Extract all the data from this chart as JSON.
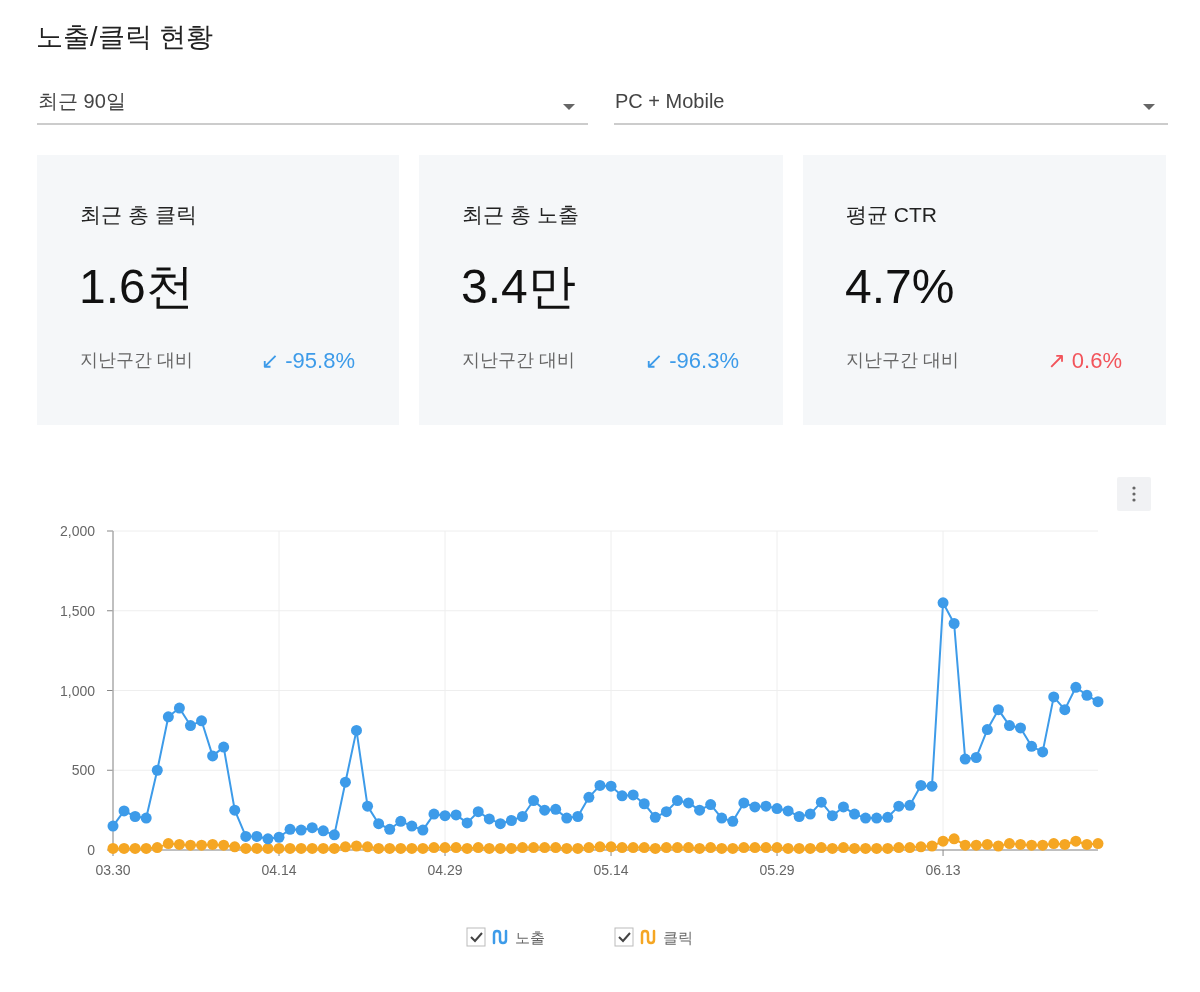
{
  "chart_data": [
    {
      "type": "other",
      "title": "최근 총 클릭",
      "annotations": [
        "1.6천",
        "지난구간 대비",
        "↙ -95.8%"
      ],
      "color": "#3d9be9"
    },
    {
      "type": "other",
      "title": "최근 총 노출",
      "annotations": [
        "3.4만",
        "지난구간 대비",
        "↙ -96.3%"
      ],
      "color": "#3d9be9"
    },
    {
      "type": "other",
      "title": "평균 CTR",
      "annotations": [
        "4.7%",
        "지난구간 대비",
        "↗ 0.6%"
      ],
      "color": "#f2545b"
    },
    {
      "type": "line",
      "title": "노출/클릭 현황",
      "annotations": [
        "최근 90일",
        "PC + Mobile"
      ],
      "x": [
        "--03-30",
        "--03-31",
        "--04-01",
        "--04-02",
        "--04-03",
        "--04-04",
        "--04-05",
        "--04-06",
        "--04-07",
        "--04-08",
        "--04-09",
        "--04-10",
        "--04-11",
        "--04-12",
        "--04-13",
        "--04-14",
        "--04-15",
        "--04-16",
        "--04-17",
        "--04-18",
        "--04-19",
        "--04-20",
        "--04-21",
        "--04-22",
        "--04-23",
        "--04-24",
        "--04-25",
        "--04-26",
        "--04-27",
        "--04-28",
        "--04-29",
        "--04-30",
        "--05-01",
        "--05-02",
        "--05-03",
        "--05-04",
        "--05-05",
        "--05-06",
        "--05-07",
        "--05-08",
        "--05-09",
        "--05-10",
        "--05-11",
        "--05-12",
        "--05-13",
        "--05-14",
        "--05-15",
        "--05-16",
        "--05-17",
        "--05-18",
        "--05-19",
        "--05-20",
        "--05-21",
        "--05-22",
        "--05-23",
        "--05-24",
        "--05-25",
        "--05-26",
        "--05-27",
        "--05-28",
        "--05-29",
        "--05-30",
        "--05-31",
        "--06-01",
        "--06-02",
        "--06-03",
        "--06-04",
        "--06-05",
        "--06-06",
        "--06-07",
        "--06-08",
        "--06-09",
        "--06-10",
        "--06-11",
        "--06-12",
        "--06-13",
        "--06-14",
        "--06-15",
        "--06-16",
        "--06-17",
        "--06-18",
        "--06-19",
        "--06-20",
        "--06-21",
        "--06-22",
        "--06-23",
        "--06-24",
        "--06-25",
        "--06-26",
        "--06-27"
      ],
      "series": [
        {
          "name": "노출",
          "color": "#3d9be9",
          "values": [
            150,
            245,
            210,
            200,
            500,
            835,
            890,
            780,
            810,
            590,
            645,
            250,
            85,
            85,
            70,
            80,
            130,
            125,
            140,
            120,
            95,
            425,
            750,
            275,
            165,
            130,
            180,
            150,
            125,
            225,
            215,
            220,
            170,
            240,
            195,
            165,
            185,
            210,
            310,
            250,
            255,
            200,
            210,
            330,
            405,
            400,
            340,
            345,
            290,
            205,
            240,
            310,
            295,
            250,
            285,
            200,
            180,
            295,
            270,
            275,
            260,
            245,
            210,
            225,
            300,
            215,
            270,
            225,
            200,
            200,
            205,
            275,
            280,
            405,
            400,
            1550,
            1420,
            570,
            580,
            755,
            880,
            780,
            765,
            650,
            615,
            960,
            880,
            1020,
            970,
            930
          ]
        },
        {
          "name": "클릭",
          "color": "#f5a623",
          "values": [
            10,
            10,
            10,
            10,
            15,
            40,
            35,
            30,
            30,
            35,
            30,
            20,
            10,
            10,
            10,
            10,
            10,
            10,
            10,
            10,
            10,
            20,
            25,
            20,
            10,
            10,
            10,
            10,
            10,
            15,
            15,
            15,
            10,
            15,
            10,
            10,
            10,
            15,
            15,
            15,
            15,
            10,
            10,
            15,
            20,
            20,
            15,
            15,
            15,
            10,
            15,
            15,
            15,
            10,
            15,
            10,
            10,
            15,
            15,
            15,
            15,
            10,
            10,
            10,
            15,
            10,
            15,
            10,
            10,
            10,
            10,
            15,
            15,
            20,
            25,
            55,
            70,
            30,
            30,
            35,
            25,
            40,
            35,
            30,
            30,
            40,
            35,
            55,
            35,
            40
          ]
        }
      ],
      "xlim": [
        "--03-30",
        "--06-27"
      ],
      "xticks": [
        {
          "value": "--03-30",
          "label": "03.30"
        },
        {
          "value": "--04-14",
          "label": "04.14"
        },
        {
          "value": "--04-29",
          "label": "04.29"
        },
        {
          "value": "--05-14",
          "label": "05.14"
        },
        {
          "value": "--05-29",
          "label": "05.29"
        },
        {
          "value": "--06-13",
          "label": "06.13"
        }
      ],
      "ylim": [
        0,
        2000
      ],
      "yticks": [
        0,
        500,
        {
          "value": 1000,
          "label": "1,000"
        },
        {
          "value": 1500,
          "label": "1,500"
        },
        {
          "value": 2000,
          "label": "2,000"
        }
      ],
      "grid": true,
      "legend": "bottom",
      "marker": "circle",
      "line_style": "solid"
    }
  ]
}
